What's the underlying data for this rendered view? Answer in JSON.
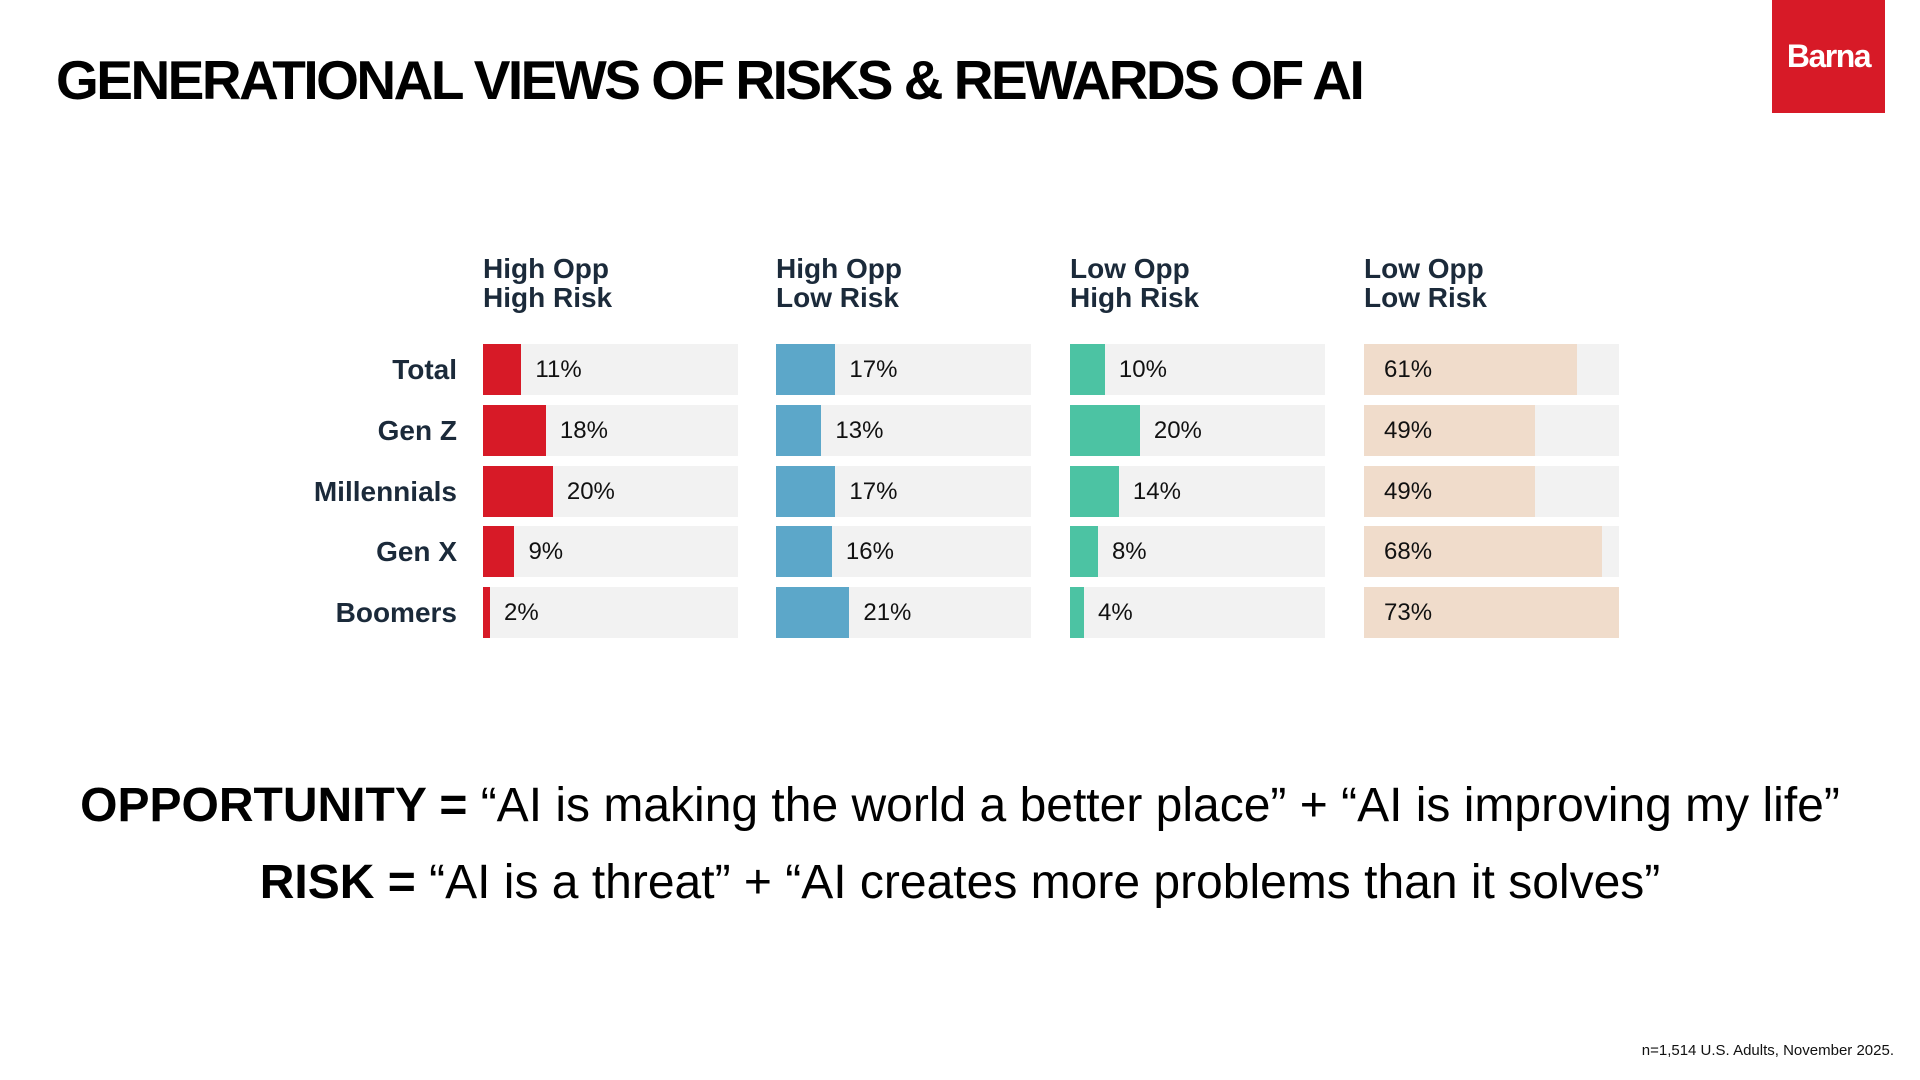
{
  "title": "GENERATIONAL VIEWS OF RISKS & REWARDS OF AI",
  "logo": "Barna",
  "chart_data": {
    "type": "bar",
    "orientation": "horizontal",
    "categories": [
      "Total",
      "Gen Z",
      "Millennials",
      "Gen X",
      "Boomers"
    ],
    "series": [
      {
        "name": "High Opp High Risk",
        "line1": "High Opp",
        "line2": "High Risk",
        "color": "#d71a27",
        "values": [
          11,
          18,
          20,
          9,
          2
        ],
        "labels": [
          "11%",
          "18%",
          "20%",
          "9%",
          "2%"
        ]
      },
      {
        "name": "High Opp Low Risk",
        "line1": "High Opp",
        "line2": "Low Risk",
        "color": "#5ca7c9",
        "values": [
          17,
          13,
          17,
          16,
          21
        ],
        "labels": [
          "17%",
          "13%",
          "17%",
          "16%",
          "21%"
        ]
      },
      {
        "name": "Low Opp High Risk",
        "line1": "Low Opp",
        "line2": "High Risk",
        "color": "#4cc3a3",
        "values": [
          10,
          20,
          14,
          8,
          4
        ],
        "labels": [
          "10%",
          "20%",
          "14%",
          "8%",
          "4%"
        ]
      },
      {
        "name": "Low Opp Low Risk",
        "line1": "Low Opp",
        "line2": "Low Risk",
        "color": "#f0dccb",
        "values": [
          61,
          49,
          49,
          68,
          73
        ],
        "labels": [
          "61%",
          "49%",
          "49%",
          "68%",
          "73%"
        ]
      }
    ]
  },
  "definitions": {
    "opportunity_term": "OPPORTUNITY =",
    "opportunity_text": "“AI is making the world a better place” + “AI is improving my life”",
    "risk_term": "RISK =",
    "risk_text": "“AI is a threat” + “AI creates more problems than it solves”"
  },
  "footnote": "n=1,514 U.S. Adults, November 2025."
}
